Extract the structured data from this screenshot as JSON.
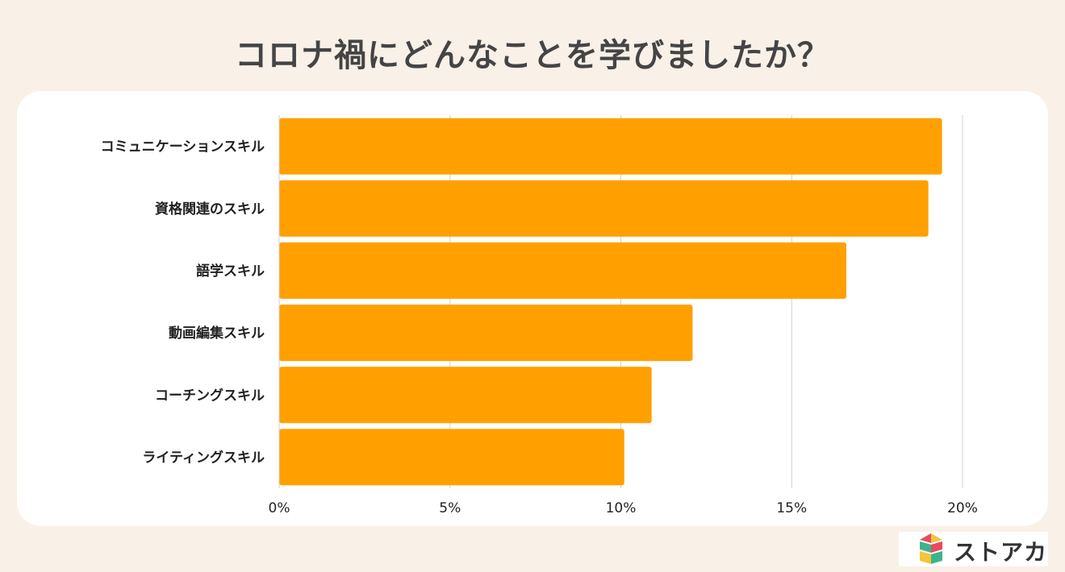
{
  "title": "コロナ禍にどんなことを学びましたか？",
  "chart_data": {
    "type": "bar",
    "orientation": "horizontal",
    "categories": [
      "コミュニケーションスキル",
      "資格関連のスキル",
      "語学スキル",
      "動画編集スキル",
      "コーチングスキル",
      "ライティングスキル"
    ],
    "values": [
      19.4,
      19.0,
      16.6,
      12.1,
      10.9,
      10.1
    ],
    "xticks": [
      "0%",
      "5%",
      "10%",
      "15%",
      "20%"
    ],
    "xlim": [
      0,
      20
    ],
    "grid": true,
    "bar_color": "#ffa000"
  },
  "logo": {
    "text": "ストアカ",
    "icon": "storeaca-logo-icon"
  }
}
